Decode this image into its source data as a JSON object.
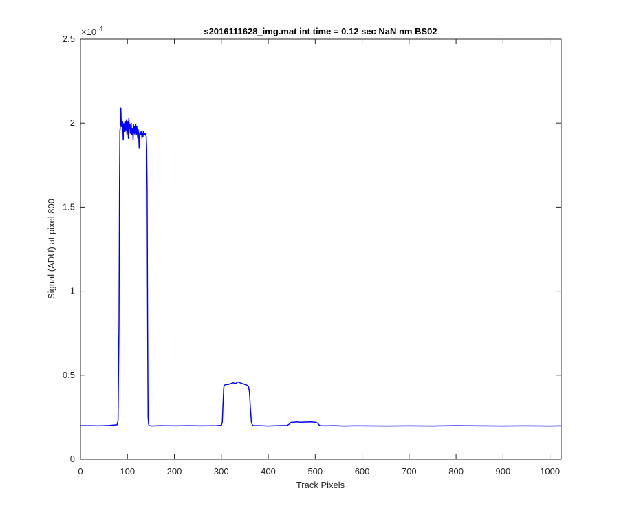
{
  "chart_data": {
    "type": "line",
    "title": "s2016111628_img.mat int time = 0.12 sec  NaN nm BS02",
    "xlabel": "Track Pixels",
    "ylabel": "Signal (ADU) at pixel 800",
    "xlim": [
      0,
      1024
    ],
    "ylim": [
      0,
      25000
    ],
    "xticks": [
      0,
      100,
      200,
      300,
      400,
      500,
      600,
      700,
      800,
      900,
      1000
    ],
    "xtick_labels": [
      "0",
      "100",
      "200",
      "300",
      "400",
      "500",
      "600",
      "700",
      "800",
      "900",
      "1000"
    ],
    "yticks": [
      0,
      5000,
      10000,
      15000,
      20000,
      25000
    ],
    "ytick_labels": [
      "0",
      "0.5",
      "1",
      "1.5",
      "2",
      "2.5"
    ],
    "y_exponent_label": "×10",
    "y_exponent_power": "4",
    "grid": false,
    "line_color": "#0000ff",
    "series": [
      {
        "x": [
          0,
          20,
          40,
          60,
          78,
          80,
          82,
          83,
          84,
          85,
          86,
          87,
          88,
          89,
          90,
          91,
          92,
          93,
          94,
          95,
          96,
          97,
          98,
          99,
          100,
          101,
          102,
          103,
          104,
          105,
          106,
          107,
          108,
          109,
          110,
          111,
          112,
          113,
          114,
          115,
          116,
          117,
          118,
          119,
          120,
          121,
          122,
          123,
          124,
          125,
          126,
          127,
          128,
          129,
          130,
          131,
          132,
          133,
          134,
          135,
          136,
          137,
          138,
          139,
          140,
          141,
          142,
          143,
          144,
          145,
          146,
          148,
          150,
          170,
          200,
          230,
          260,
          290,
          300,
          302,
          304,
          305,
          306,
          310,
          315,
          320,
          325,
          330,
          335,
          340,
          345,
          350,
          355,
          358,
          360,
          362,
          364,
          366,
          368,
          380,
          400,
          420,
          440,
          445,
          448,
          450,
          455,
          460,
          470,
          480,
          490,
          500,
          505,
          508,
          510,
          520,
          540,
          560,
          580,
          600,
          650,
          700,
          750,
          800,
          850,
          900,
          950,
          1000,
          1024
        ],
        "y": [
          2000,
          2000,
          1990,
          2010,
          2050,
          2300,
          8000,
          16000,
          19500,
          19900,
          20900,
          19800,
          20200,
          19700,
          20100,
          19000,
          19900,
          20000,
          19800,
          19500,
          20100,
          19600,
          20200,
          19300,
          19900,
          20100,
          19100,
          20300,
          19700,
          19900,
          19400,
          19800,
          20000,
          19300,
          19700,
          19600,
          19000,
          19900,
          19400,
          19800,
          19300,
          19700,
          19900,
          19300,
          19800,
          19500,
          19100,
          19600,
          19400,
          18500,
          19200,
          19500,
          19300,
          19400,
          19500,
          19100,
          19400,
          19200,
          19500,
          19300,
          19400,
          19300,
          19400,
          19300,
          19200,
          18500,
          16000,
          8000,
          2500,
          2100,
          2000,
          2000,
          1980,
          2000,
          1990,
          2000,
          1990,
          2000,
          2020,
          2200,
          3500,
          4200,
          4400,
          4450,
          4450,
          4500,
          4550,
          4500,
          4600,
          4550,
          4500,
          4450,
          4400,
          4300,
          4000,
          3000,
          2200,
          2050,
          2000,
          2000,
          1980,
          2000,
          2010,
          2100,
          2180,
          2200,
          2200,
          2220,
          2200,
          2210,
          2220,
          2200,
          2150,
          2050,
          2000,
          1990,
          2000,
          1980,
          1990,
          1990,
          1980,
          1990,
          1980,
          2000,
          1990,
          1980,
          1990,
          1980,
          1990
        ]
      }
    ]
  }
}
